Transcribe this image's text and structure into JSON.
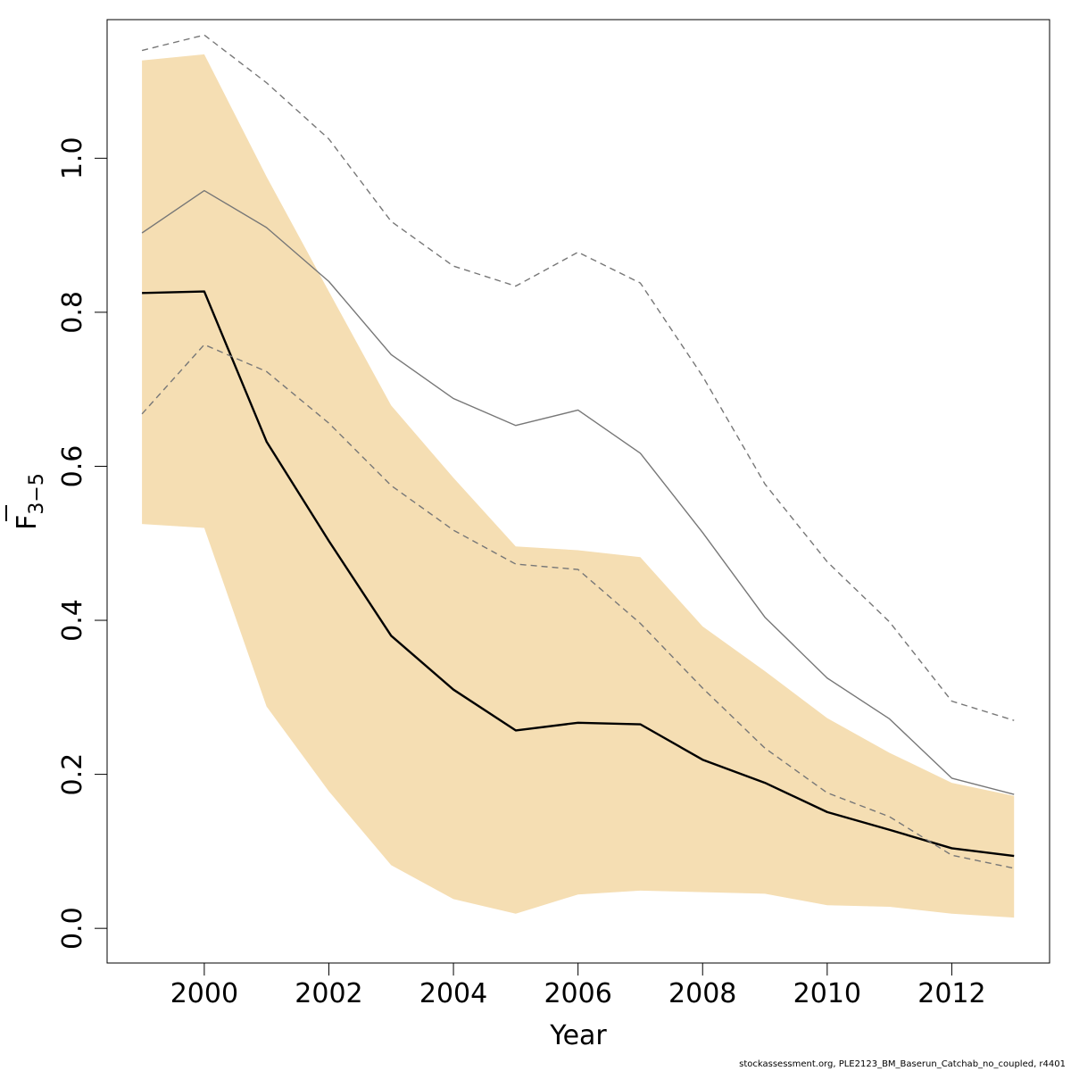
{
  "chart_data": {
    "type": "line",
    "xlabel": "Year",
    "ylabel": {
      "base": "F",
      "sub": "3−5"
    },
    "xlim": [
      1998.44,
      2013.57
    ],
    "ylim": [
      -0.045,
      1.18
    ],
    "xticks": [
      2000,
      2002,
      2004,
      2006,
      2008,
      2010,
      2012
    ],
    "xtick_labels": [
      "2000",
      "2002",
      "2004",
      "2006",
      "2008",
      "2010",
      "2012"
    ],
    "yticks": [
      0.0,
      0.2,
      0.4,
      0.6,
      0.8,
      1.0
    ],
    "ytick_labels": [
      "0.0",
      "0.2",
      "0.4",
      "0.6",
      "0.8",
      "1.0"
    ],
    "x": [
      1999,
      2000,
      2001,
      2002,
      2003,
      2004,
      2005,
      2006,
      2007,
      2008,
      2009,
      2010,
      2011,
      2012,
      2013
    ],
    "band": {
      "color": "#f5deb3",
      "lower": [
        0.525,
        0.52,
        0.288,
        0.178,
        0.082,
        0.038,
        0.019,
        0.044,
        0.049,
        0.047,
        0.045,
        0.03,
        0.028,
        0.019,
        0.014
      ],
      "upper": [
        1.127,
        1.135,
        0.976,
        0.827,
        0.679,
        0.585,
        0.496,
        0.491,
        0.482,
        0.392,
        0.334,
        0.273,
        0.228,
        0.189,
        0.172
      ]
    },
    "series": [
      {
        "style": "solid-thick",
        "color": "#000000",
        "values": [
          0.825,
          0.827,
          0.632,
          0.503,
          0.38,
          0.31,
          0.257,
          0.267,
          0.265,
          0.219,
          0.189,
          0.151,
          0.128,
          0.104,
          0.094
        ]
      },
      {
        "style": "solid-thin",
        "color": "#777777",
        "values": [
          0.903,
          0.958,
          0.91,
          0.84,
          0.745,
          0.688,
          0.653,
          0.673,
          0.617,
          0.514,
          0.404,
          0.325,
          0.272,
          0.195,
          0.174
        ]
      },
      {
        "style": "dashed",
        "color": "#777777",
        "values": [
          1.14,
          1.16,
          1.098,
          1.025,
          0.918,
          0.86,
          0.834,
          0.878,
          0.838,
          0.717,
          0.577,
          0.476,
          0.398,
          0.295,
          0.27
        ]
      },
      {
        "style": "dashed",
        "color": "#777777",
        "values": [
          0.668,
          0.758,
          0.723,
          0.656,
          0.575,
          0.517,
          0.473,
          0.466,
          0.396,
          0.312,
          0.234,
          0.176,
          0.145,
          0.095,
          0.078
        ]
      }
    ]
  },
  "footer": "stockassessment.org, PLE2123_BM_Baserun_Catchab_no_coupled, r4401"
}
